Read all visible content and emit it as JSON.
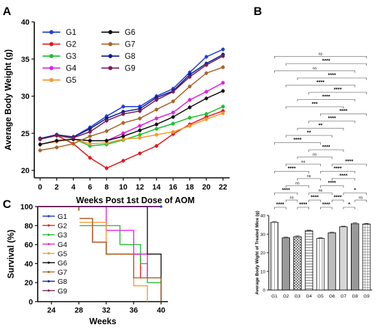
{
  "colors": {
    "G1": "#1f3fd6",
    "G2": "#e3191c",
    "G3": "#1fbf2f",
    "G4": "#e01fe0",
    "G5": "#f2992e",
    "G6": "#111111",
    "G7": "#a8652a",
    "G8": "#0b1f8c",
    "G9": "#7a1a5c"
  },
  "panels": {
    "A": "A",
    "B": "B",
    "C": "C"
  },
  "chart_data": [
    {
      "id": "weight",
      "type": "line",
      "xlabel": "Weeks Post 1st Dose of AOM",
      "ylabel": "Average Body Weight (g)",
      "x": [
        0,
        2,
        4,
        6,
        8,
        10,
        12,
        14,
        16,
        18,
        20,
        22
      ],
      "xticks": [
        "0",
        "2",
        "4",
        "6",
        "8",
        "10",
        "12",
        "14",
        "16",
        "18",
        "20",
        "22"
      ],
      "yticks": [
        "20",
        "25",
        "30",
        "35",
        "40"
      ],
      "ylim": [
        19,
        40
      ],
      "legend": [
        "G1",
        "G2",
        "G3",
        "G4",
        "G5",
        "G6",
        "G7",
        "G8",
        "G9"
      ],
      "series": [
        {
          "name": "G1",
          "values": [
            24.3,
            24.8,
            24.5,
            25.8,
            27.3,
            28.6,
            28.6,
            30.0,
            31.0,
            33.2,
            35.3,
            36.3
          ]
        },
        {
          "name": "G2",
          "values": [
            24.2,
            24.7,
            23.6,
            21.7,
            20.3,
            21.3,
            22.3,
            23.3,
            24.9,
            26.2,
            27.2,
            28.0
          ]
        },
        {
          "name": "G3",
          "values": [
            24.2,
            24.7,
            24.3,
            23.3,
            23.5,
            24.1,
            24.8,
            25.6,
            26.3,
            27.1,
            27.6,
            28.6
          ]
        },
        {
          "name": "G4",
          "values": [
            23.5,
            23.9,
            24.2,
            24.0,
            24.0,
            25.0,
            26.0,
            27.0,
            27.8,
            29.5,
            30.6,
            31.8
          ]
        },
        {
          "name": "G5",
          "values": [
            23.5,
            23.9,
            24.2,
            23.6,
            23.7,
            24.2,
            24.4,
            24.8,
            25.2,
            26.0,
            26.9,
            27.7
          ]
        },
        {
          "name": "G6",
          "values": [
            23.5,
            24.0,
            24.2,
            24.0,
            24.0,
            24.6,
            25.4,
            26.2,
            27.2,
            28.5,
            29.7,
            30.7
          ]
        },
        {
          "name": "G7",
          "values": [
            22.7,
            23.1,
            23.6,
            24.6,
            25.3,
            26.4,
            27.0,
            28.2,
            29.3,
            31.3,
            33.1,
            33.9
          ]
        },
        {
          "name": "G8",
          "values": [
            24.3,
            24.8,
            24.5,
            25.6,
            27.0,
            27.9,
            28.3,
            29.8,
            30.7,
            32.9,
            34.4,
            35.6
          ]
        },
        {
          "name": "G9",
          "values": [
            24.2,
            24.7,
            24.4,
            25.2,
            26.7,
            27.6,
            28.0,
            29.5,
            30.6,
            32.6,
            34.2,
            35.4
          ]
        }
      ]
    },
    {
      "id": "survival",
      "type": "line",
      "xlabel": "Weeks",
      "ylabel": "Survival (%)",
      "xticks": [
        "24",
        "28",
        "32",
        "36",
        "40"
      ],
      "yticks": [
        "0",
        "20",
        "40",
        "60",
        "80",
        "100"
      ],
      "xlim": [
        22,
        41
      ],
      "ylim": [
        0,
        100
      ],
      "legend": [
        "G1",
        "G2",
        "G3",
        "G4",
        "G5",
        "G6",
        "G7",
        "G8",
        "G9"
      ],
      "series": [
        {
          "name": "G1",
          "steps": [
            [
              22,
              100
            ],
            [
              40,
              100
            ]
          ]
        },
        {
          "name": "G2",
          "steps": [
            [
              22,
              100
            ],
            [
              28,
              100
            ],
            [
              28,
              87.5
            ],
            [
              30,
              87.5
            ],
            [
              30,
              62.5
            ],
            [
              32,
              62.5
            ],
            [
              32,
              50
            ],
            [
              37,
              50
            ],
            [
              37,
              25
            ],
            [
              40,
              25
            ]
          ]
        },
        {
          "name": "G3",
          "steps": [
            [
              22,
              100
            ],
            [
              28,
              100
            ],
            [
              28,
              80
            ],
            [
              34,
              80
            ],
            [
              34,
              60
            ],
            [
              37,
              60
            ],
            [
              37,
              40
            ],
            [
              38,
              40
            ],
            [
              38,
              20
            ],
            [
              40,
              20
            ]
          ]
        },
        {
          "name": "G4",
          "steps": [
            [
              22,
              100
            ],
            [
              32,
              100
            ],
            [
              32,
              75
            ],
            [
              36,
              75
            ],
            [
              36,
              50
            ],
            [
              38,
              50
            ],
            [
              38,
              25
            ],
            [
              40,
              25
            ]
          ]
        },
        {
          "name": "G5",
          "steps": [
            [
              22,
              100
            ],
            [
              28,
              100
            ],
            [
              28,
              83.3
            ],
            [
              32,
              83.3
            ],
            [
              32,
              50
            ],
            [
              36,
              50
            ],
            [
              36,
              16.7
            ],
            [
              38,
              16.7
            ],
            [
              38,
              0
            ]
          ]
        },
        {
          "name": "G6",
          "steps": [
            [
              22,
              100
            ],
            [
              38,
              100
            ],
            [
              38,
              50
            ],
            [
              40,
              50
            ],
            [
              40,
              0
            ]
          ]
        },
        {
          "name": "G7",
          "steps": [
            [
              22,
              100
            ],
            [
              28,
              100
            ],
            [
              28,
              87.5
            ],
            [
              30,
              87.5
            ],
            [
              30,
              62.5
            ],
            [
              32,
              62.5
            ],
            [
              32,
              50
            ],
            [
              36,
              50
            ],
            [
              36,
              25
            ],
            [
              40,
              25
            ],
            [
              40,
              0
            ]
          ]
        },
        {
          "name": "G8",
          "steps": [
            [
              22,
              100
            ],
            [
              40,
              100
            ]
          ]
        },
        {
          "name": "G9",
          "steps": [
            [
              22,
              100
            ],
            [
              40,
              100
            ]
          ]
        }
      ]
    },
    {
      "id": "bars",
      "type": "bar",
      "ylabel": "Average Body Wight of Treated Mice (g)",
      "categories": [
        "G1",
        "G2",
        "G3",
        "G4",
        "G5",
        "G6",
        "G7",
        "G8",
        "G9"
      ],
      "values": [
        36.3,
        28.0,
        28.6,
        31.8,
        27.7,
        30.7,
        33.9,
        35.6,
        35.4
      ],
      "yticks": [
        "0",
        "10",
        "20",
        "30",
        "40"
      ],
      "ylim": [
        0,
        40
      ]
    },
    {
      "id": "significance",
      "type": "table",
      "comparisons": [
        {
          "a": 0,
          "b": 1,
          "label": "****"
        },
        {
          "a": 1,
          "b": 2,
          "label": "ns"
        },
        {
          "a": 2,
          "b": 3,
          "label": "****"
        },
        {
          "a": 3,
          "b": 4,
          "label": "****"
        },
        {
          "a": 4,
          "b": 5,
          "label": "****"
        },
        {
          "a": 5,
          "b": 6,
          "label": "****"
        },
        {
          "a": 6,
          "b": 7,
          "label": "*"
        },
        {
          "a": 7,
          "b": 8,
          "label": "ns"
        },
        {
          "a": 0,
          "b": 2,
          "label": "****"
        },
        {
          "a": 1,
          "b": 3,
          "label": "ns"
        },
        {
          "a": 2,
          "b": 4,
          "label": "ns"
        },
        {
          "a": 3,
          "b": 5,
          "label": "ns"
        },
        {
          "a": 4,
          "b": 6,
          "label": "****"
        },
        {
          "a": 5,
          "b": 7,
          "label": "****"
        },
        {
          "a": 6,
          "b": 8,
          "label": "*"
        },
        {
          "a": 0,
          "b": 3,
          "label": "****"
        },
        {
          "a": 1,
          "b": 4,
          "label": "ns"
        },
        {
          "a": 2,
          "b": 5,
          "label": "ns"
        },
        {
          "a": 3,
          "b": 6,
          "label": "****"
        },
        {
          "a": 4,
          "b": 7,
          "label": "****"
        },
        {
          "a": 0,
          "b": 4,
          "label": "****"
        },
        {
          "a": 1,
          "b": 5,
          "label": "**"
        },
        {
          "a": 5,
          "b": 8,
          "label": "****"
        },
        {
          "a": 2,
          "b": 6,
          "label": "**"
        },
        {
          "a": 1,
          "b": 6,
          "label": "***"
        },
        {
          "a": 2,
          "b": 7,
          "label": "****"
        },
        {
          "a": 1,
          "b": 7,
          "label": "****"
        },
        {
          "a": 3,
          "b": 7,
          "label": "****"
        },
        {
          "a": 1,
          "b": 8,
          "label": "****"
        },
        {
          "a": 3,
          "b": 8,
          "label": "****"
        },
        {
          "a": 4,
          "b": 8,
          "label": "****"
        },
        {
          "a": 2,
          "b": 8,
          "label": "****"
        },
        {
          "a": 0,
          "b": 7,
          "label": "ns"
        },
        {
          "a": 0,
          "b": 8,
          "label": "ns"
        }
      ]
    }
  ]
}
